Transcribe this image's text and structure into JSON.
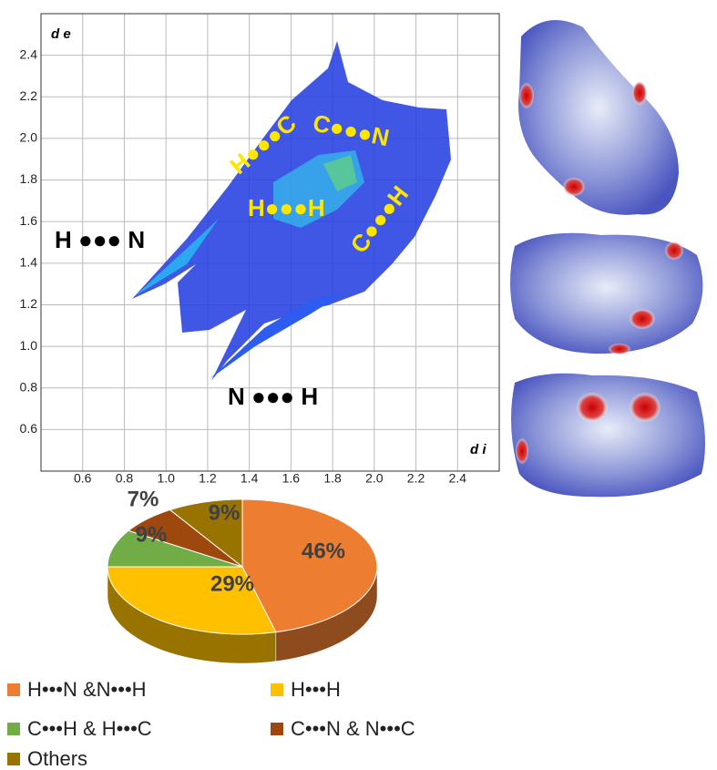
{
  "chart_data": [
    {
      "type": "fingerprint",
      "y_label": "d e",
      "x_label": "d i",
      "xlim": [
        0.4,
        2.6
      ],
      "ylim": [
        0.4,
        2.6
      ],
      "xticks": [
        0.6,
        0.8,
        {
          "value": 1,
          "label": "1.0"
        },
        1.2,
        1.4,
        1.6,
        1.8,
        {
          "value": 2,
          "label": "2.0"
        },
        2.2,
        2.4
      ],
      "yticks": [
        0.6,
        0.8,
        {
          "value": 1,
          "label": "1.0"
        },
        1.2,
        1.4,
        1.6,
        1.8,
        {
          "value": 2,
          "label": "2.0"
        },
        2.2,
        2.4
      ],
      "grid": true,
      "annotations": [
        "H ●●● N",
        "N ●●● H",
        "H●●●C",
        "C●●●N",
        "H●●●H",
        "C●●●H"
      ]
    },
    {
      "type": "pie",
      "categories": [
        "H•••N &N•••H",
        "H•••H",
        "C•••H & H•••C",
        "C•••N & N•••C",
        "Others"
      ],
      "values": [
        46,
        29,
        9,
        7,
        9
      ],
      "value_labels": [
        "46%",
        "29%",
        "9%",
        "7%",
        "9%"
      ],
      "colors": [
        "#ED7D31",
        "#FFC000",
        "#70AD47",
        "#9E480E",
        "#997300"
      ]
    }
  ]
}
